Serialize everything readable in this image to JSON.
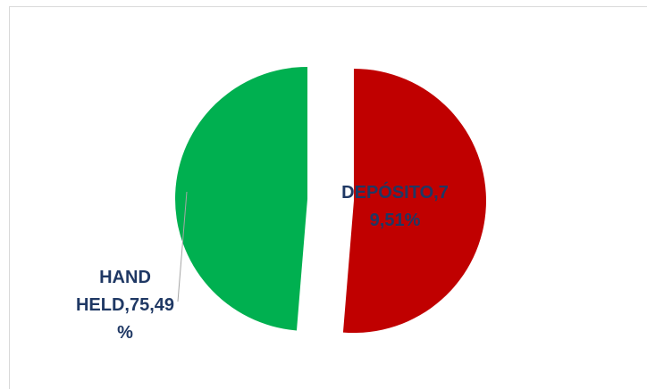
{
  "chart_data": {
    "type": "pie",
    "title": "",
    "legend": "none",
    "exploded": true,
    "slices": [
      {
        "name": "DEPÓSITO",
        "value": 79.51,
        "color": "#c00000",
        "label_lines": [
          "DEPÓSITO,7",
          "9,51%"
        ]
      },
      {
        "name": "HAND HELD",
        "value": 75.49,
        "color": "#00b050",
        "label_lines": [
          "HAND",
          "HELD,75,49",
          "%"
        ]
      }
    ],
    "label_color": "#1f3864",
    "leader_line_color": "#a6a6a6"
  }
}
